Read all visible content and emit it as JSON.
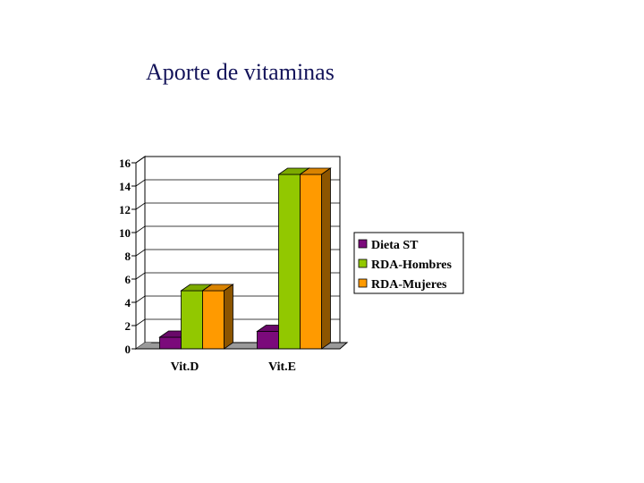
{
  "page": {
    "title": "Aporte de vitaminas"
  },
  "chart_data": {
    "type": "bar",
    "title": "",
    "xlabel": "",
    "ylabel": "",
    "categories": [
      "Vit.D",
      "Vit.E"
    ],
    "series": [
      {
        "name": "Dieta ST",
        "values": [
          1,
          1.5
        ],
        "color": "#7b0a7b"
      },
      {
        "name": "RDA-Hombres",
        "values": [
          5,
          15
        ],
        "color": "#92c800"
      },
      {
        "name": "RDA-Mujeres",
        "values": [
          5,
          15
        ],
        "color": "#ff9a00"
      }
    ],
    "yticks": [
      "0",
      "2",
      "4",
      "6",
      "8",
      "10",
      "12",
      "14",
      "16"
    ],
    "ylim": [
      0,
      16
    ],
    "grid": true,
    "legend_position": "right",
    "style": "3d-bar"
  }
}
